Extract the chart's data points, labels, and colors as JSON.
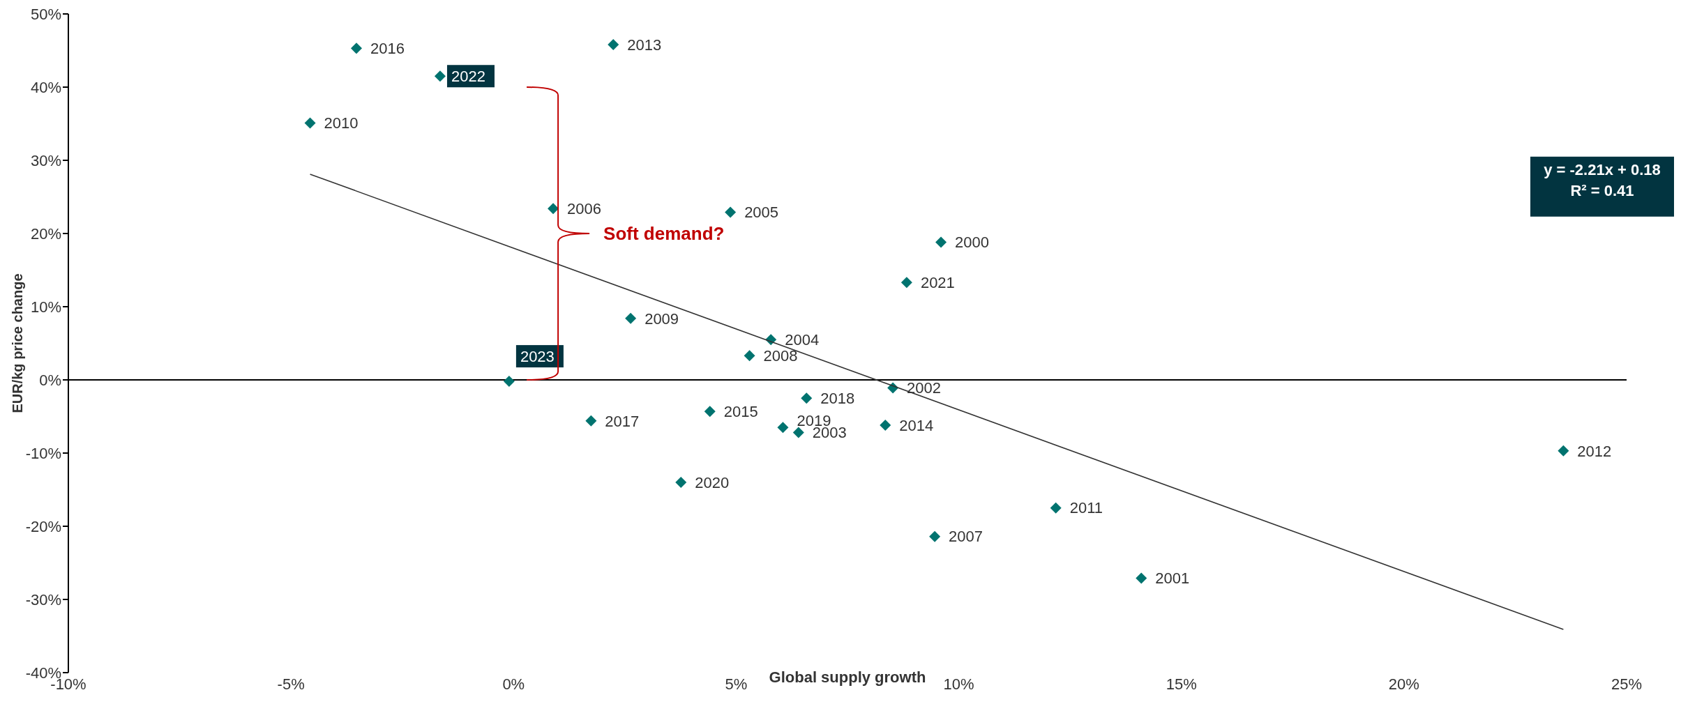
{
  "chart_data": {
    "type": "scatter",
    "xlabel": "Global supply growth",
    "ylabel": "EUR/kg price change",
    "xlim": [
      -10,
      25
    ],
    "ylim": [
      -40,
      50
    ],
    "xticks": [
      {
        "value": -10,
        "label": "-10%"
      },
      {
        "value": -5,
        "label": "-5%"
      },
      {
        "value": 0,
        "label": "0%"
      },
      {
        "value": 5,
        "label": "5%"
      },
      {
        "value": 10,
        "label": "10%"
      },
      {
        "value": 15,
        "label": "15%"
      },
      {
        "value": 20,
        "label": "20%"
      },
      {
        "value": 25,
        "label": "25%"
      }
    ],
    "yticks": [
      {
        "value": -40,
        "label": "-40%"
      },
      {
        "value": -30,
        "label": "-30%"
      },
      {
        "value": -20,
        "label": "-20%"
      },
      {
        "value": -10,
        "label": "-10%"
      },
      {
        "value": 0,
        "label": "0%"
      },
      {
        "value": 10,
        "label": "10%"
      },
      {
        "value": 20,
        "label": "20%"
      },
      {
        "value": 30,
        "label": "30%"
      },
      {
        "value": 40,
        "label": "40%"
      },
      {
        "value": 50,
        "label": "50%"
      }
    ],
    "marker": "diamond",
    "ref_lines": [
      {
        "axis": "y",
        "value": 0,
        "color": "#000000"
      }
    ],
    "series": [
      {
        "color": "#00736f",
        "x": [
          -3.53,
          2.24,
          -4.57,
          0.89,
          4.87,
          9.6,
          8.83,
          2.63,
          5.78,
          5.3,
          8.52,
          6.58,
          4.41,
          1.74,
          6.05,
          8.35,
          6.4,
          23.58,
          3.76,
          12.18,
          9.46,
          14.1
        ],
        "values": [
          45.3,
          45.8,
          35.1,
          23.4,
          22.9,
          18.8,
          13.3,
          8.4,
          5.5,
          3.3,
          -1.1,
          -2.5,
          -4.3,
          -5.6,
          -6.5,
          -6.2,
          -7.2,
          -9.7,
          -14.0,
          -17.5,
          -21.4,
          -27.1
        ]
      },
      {
        "color": "#00736f",
        "x": [
          -1.65,
          -0.1
        ],
        "values": [
          41.5,
          -0.2
        ]
      },
      {
        "type": "line",
        "color": "#333333",
        "marker": "none",
        "x": [
          -4.57,
          23.58
        ],
        "values": [
          28.1,
          -34.1
        ]
      }
    ],
    "annotations": [
      {
        "text": "2016",
        "x": -3.53,
        "y": 45.3
      },
      {
        "text": "2013",
        "x": 2.24,
        "y": 45.8
      },
      {
        "text": "2010",
        "x": -4.57,
        "y": 35.1
      },
      {
        "text": "2006",
        "x": 0.89,
        "y": 23.4
      },
      {
        "text": "2005",
        "x": 4.87,
        "y": 22.9
      },
      {
        "text": "2000",
        "x": 9.6,
        "y": 18.8
      },
      {
        "text": "2021",
        "x": 8.83,
        "y": 13.3
      },
      {
        "text": "2009",
        "x": 2.63,
        "y": 8.4
      },
      {
        "text": "2004",
        "x": 5.78,
        "y": 5.5
      },
      {
        "text": "2008",
        "x": 5.3,
        "y": 3.3
      },
      {
        "text": "2002",
        "x": 8.52,
        "y": -1.1
      },
      {
        "text": "2018",
        "x": 6.58,
        "y": -2.5
      },
      {
        "text": "2015",
        "x": 4.41,
        "y": -4.3
      },
      {
        "text": "2017",
        "x": 1.74,
        "y": -5.6
      },
      {
        "text": "2019",
        "x": 6.05,
        "y": -6.5
      },
      {
        "text": "2014",
        "x": 8.35,
        "y": -6.2
      },
      {
        "text": "2003",
        "x": 6.4,
        "y": -7.2
      },
      {
        "text": "2012",
        "x": 23.58,
        "y": -9.7
      },
      {
        "text": "2020",
        "x": 3.76,
        "y": -14.0
      },
      {
        "text": "2011",
        "x": 12.18,
        "y": -17.5
      },
      {
        "text": "2007",
        "x": 9.46,
        "y": -21.4
      },
      {
        "text": "2001",
        "x": 14.1,
        "y": -27.1
      },
      {
        "text": "2022",
        "x": -1.65,
        "y": 41.5
      },
      {
        "text": "2023",
        "x": -0.1,
        "y": -0.2
      },
      "Soft demand?",
      "y = -2.21x + 0.18",
      "R² = 0.41"
    ]
  }
}
